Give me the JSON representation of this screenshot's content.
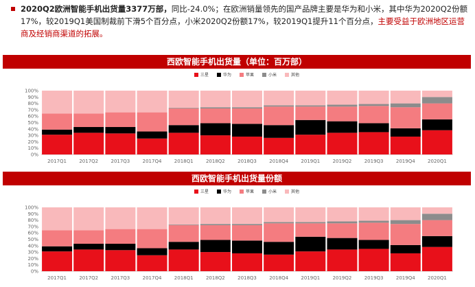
{
  "intro": {
    "bold_part": "2020Q2欧洲智能手机出货量3377万部，",
    "plain_part": "同比-24.0%；在欧洲销量领先的国产品牌主要是华为和小米，其中华为2020Q2份额17%，较2019Q1美国制裁前下滑5个百分点，小米2020Q2份额17%，较2019Q1提升11个百分点，",
    "red_part": "主要受益于欧洲地区运营商及经销商渠道的拓展。"
  },
  "colors": {
    "band": "#c00000",
    "三星": "#e8101a",
    "华为": "#000000",
    "苹果": "#f47c80",
    "小米": "#8c8c8c",
    "其他": "#f9b9bb"
  },
  "chart_data": [
    {
      "type": "bar",
      "stacked": true,
      "title": "西欧智能手机出货量（单位：百万部）",
      "categories": [
        "2017Q1",
        "2017Q2",
        "2017Q3",
        "2017Q4",
        "2018Q1",
        "2018Q2",
        "2018Q3",
        "2018Q4",
        "2019Q1",
        "2019Q2",
        "2019Q3",
        "2019Q4",
        "2020Q1"
      ],
      "yticks": [
        "0%",
        "10%",
        "20%",
        "30%",
        "40%",
        "50%",
        "60%",
        "70%",
        "80%",
        "90%",
        "100%"
      ],
      "ylim": [
        0,
        100
      ],
      "legend": [
        "三星",
        "华为",
        "苹果",
        "小米",
        "其他"
      ],
      "series": [
        {
          "name": "三星",
          "values": [
            31,
            34,
            33,
            25,
            34,
            30,
            28,
            26,
            31,
            34,
            35,
            28,
            38
          ]
        },
        {
          "name": "华为",
          "values": [
            8,
            9,
            10,
            11,
            12,
            19,
            20,
            20,
            23,
            18,
            14,
            13,
            17
          ]
        },
        {
          "name": "苹果",
          "values": [
            25,
            21,
            23,
            30,
            26,
            23,
            24,
            29,
            21,
            23,
            27,
            33,
            25
          ]
        },
        {
          "name": "小米",
          "values": [
            0,
            0,
            0,
            0,
            1,
            2,
            2,
            2,
            2,
            3,
            3,
            6,
            10
          ]
        },
        {
          "name": "其他",
          "values": [
            36,
            36,
            34,
            34,
            27,
            26,
            26,
            23,
            23,
            22,
            21,
            20,
            10
          ]
        }
      ]
    },
    {
      "type": "bar",
      "stacked": true,
      "title": "西欧智能手机出货量份额",
      "categories": [
        "2017Q1",
        "2017Q2",
        "2017Q3",
        "2017Q4",
        "2018Q1",
        "2018Q2",
        "2018Q3",
        "2018Q4",
        "2019Q1",
        "2019Q2",
        "2019Q3",
        "2019Q4",
        "2020Q1"
      ],
      "yticks": [
        "0%",
        "10%",
        "20%",
        "30%",
        "40%",
        "50%",
        "60%",
        "70%",
        "80%",
        "90%",
        "100%"
      ],
      "ylim": [
        0,
        100
      ],
      "legend": [
        "三星",
        "华为",
        "苹果",
        "小米",
        "其他"
      ],
      "series": [
        {
          "name": "三星",
          "values": [
            31,
            34,
            33,
            25,
            34,
            30,
            28,
            26,
            31,
            34,
            35,
            28,
            38
          ]
        },
        {
          "name": "华为",
          "values": [
            8,
            9,
            10,
            11,
            12,
            19,
            20,
            20,
            23,
            18,
            14,
            13,
            17
          ]
        },
        {
          "name": "苹果",
          "values": [
            25,
            21,
            23,
            30,
            26,
            23,
            24,
            29,
            21,
            23,
            27,
            33,
            25
          ]
        },
        {
          "name": "小米",
          "values": [
            0,
            0,
            0,
            0,
            1,
            2,
            2,
            2,
            2,
            3,
            3,
            6,
            10
          ]
        },
        {
          "name": "其他",
          "values": [
            36,
            36,
            34,
            34,
            27,
            26,
            26,
            23,
            23,
            22,
            21,
            20,
            10
          ]
        }
      ]
    }
  ]
}
